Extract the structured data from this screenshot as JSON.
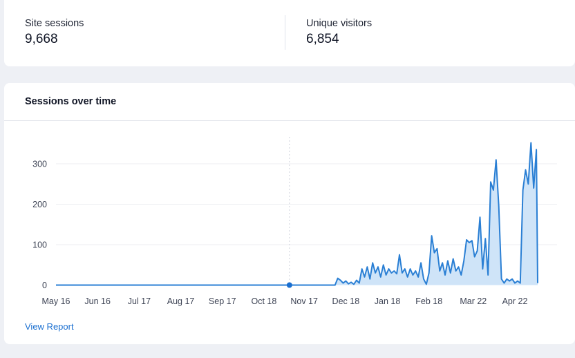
{
  "stats": {
    "site_sessions_label": "Site sessions",
    "site_sessions_value": "9,668",
    "unique_visitors_label": "Unique visitors",
    "unique_visitors_value": "6,854"
  },
  "chart": {
    "title": "Sessions over time",
    "view_report_label": "View Report",
    "line_color": "#2a7fd4",
    "fill_color": "#cfe4f8",
    "marker_color": "#1a6fd0",
    "grid_color": "#eceef2"
  },
  "chart_data": {
    "type": "area",
    "title": "Sessions over time",
    "xlabel": "",
    "ylabel": "",
    "ylim": [
      0,
      360
    ],
    "yticks": [
      0,
      100,
      200,
      300
    ],
    "x_tick_labels": [
      "May 16",
      "Jun 16",
      "Jul 17",
      "Aug 17",
      "Sep 17",
      "Oct 18",
      "Nov 17",
      "Dec 18",
      "Jan 18",
      "Feb 18",
      "Mar 22",
      "Apr 22"
    ],
    "x_tick_dates": [
      "2023-05-16",
      "2023-06-16",
      "2023-07-17",
      "2023-08-17",
      "2023-09-17",
      "2023-10-18",
      "2023-11-17",
      "2023-12-18",
      "2024-01-18",
      "2024-02-18",
      "2024-03-22",
      "2024-04-22"
    ],
    "marker_point": {
      "x": "2023-11-06",
      "y": 0
    },
    "grid": true,
    "series": [
      {
        "points": [
          [
            "2023-05-16",
            0
          ],
          [
            "2023-11-06",
            0
          ],
          [
            "2023-12-10",
            0
          ],
          [
            "2023-12-12",
            17
          ],
          [
            "2023-12-14",
            12
          ],
          [
            "2023-12-16",
            5
          ],
          [
            "2023-12-18",
            10
          ],
          [
            "2023-12-20",
            3
          ],
          [
            "2023-12-22",
            7
          ],
          [
            "2023-12-24",
            2
          ],
          [
            "2023-12-26",
            12
          ],
          [
            "2023-12-28",
            5
          ],
          [
            "2023-12-30",
            40
          ],
          [
            "2024-01-01",
            20
          ],
          [
            "2024-01-03",
            45
          ],
          [
            "2024-01-05",
            15
          ],
          [
            "2024-01-07",
            55
          ],
          [
            "2024-01-09",
            30
          ],
          [
            "2024-01-11",
            45
          ],
          [
            "2024-01-13",
            20
          ],
          [
            "2024-01-15",
            50
          ],
          [
            "2024-01-17",
            25
          ],
          [
            "2024-01-19",
            40
          ],
          [
            "2024-01-21",
            30
          ],
          [
            "2024-01-23",
            35
          ],
          [
            "2024-01-25",
            28
          ],
          [
            "2024-01-27",
            75
          ],
          [
            "2024-01-29",
            30
          ],
          [
            "2024-01-31",
            40
          ],
          [
            "2024-02-02",
            20
          ],
          [
            "2024-02-04",
            40
          ],
          [
            "2024-02-06",
            25
          ],
          [
            "2024-02-08",
            35
          ],
          [
            "2024-02-10",
            20
          ],
          [
            "2024-02-12",
            55
          ],
          [
            "2024-02-14",
            15
          ],
          [
            "2024-02-16",
            2
          ],
          [
            "2024-02-18",
            30
          ],
          [
            "2024-02-20",
            122
          ],
          [
            "2024-02-22",
            80
          ],
          [
            "2024-02-24",
            90
          ],
          [
            "2024-02-26",
            35
          ],
          [
            "2024-02-28",
            55
          ],
          [
            "2024-03-01",
            25
          ],
          [
            "2024-03-03",
            60
          ],
          [
            "2024-03-05",
            30
          ],
          [
            "2024-03-07",
            65
          ],
          [
            "2024-03-09",
            35
          ],
          [
            "2024-03-11",
            45
          ],
          [
            "2024-03-13",
            25
          ],
          [
            "2024-03-15",
            60
          ],
          [
            "2024-03-17",
            112
          ],
          [
            "2024-03-19",
            105
          ],
          [
            "2024-03-21",
            110
          ],
          [
            "2024-03-23",
            70
          ],
          [
            "2024-03-25",
            85
          ],
          [
            "2024-03-27",
            168
          ],
          [
            "2024-03-29",
            40
          ],
          [
            "2024-03-31",
            115
          ],
          [
            "2024-04-02",
            25
          ],
          [
            "2024-04-04",
            255
          ],
          [
            "2024-04-06",
            235
          ],
          [
            "2024-04-08",
            310
          ],
          [
            "2024-04-10",
            195
          ],
          [
            "2024-04-12",
            15
          ],
          [
            "2024-04-14",
            5
          ],
          [
            "2024-04-16",
            15
          ],
          [
            "2024-04-18",
            10
          ],
          [
            "2024-04-20",
            15
          ],
          [
            "2024-04-22",
            5
          ],
          [
            "2024-04-24",
            10
          ],
          [
            "2024-04-26",
            5
          ],
          [
            "2024-04-28",
            235
          ],
          [
            "2024-04-30",
            285
          ],
          [
            "2024-05-02",
            250
          ],
          [
            "2024-05-04",
            352
          ],
          [
            "2024-05-06",
            240
          ],
          [
            "2024-05-08",
            335
          ],
          [
            "2024-05-09",
            5
          ]
        ]
      }
    ]
  }
}
